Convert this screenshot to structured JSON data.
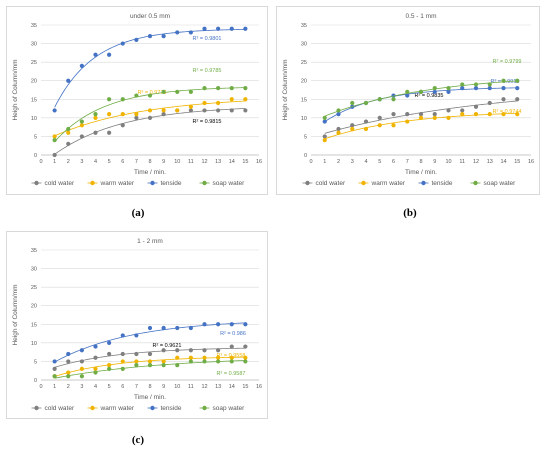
{
  "figure_labels": {
    "a": "(a)",
    "b": "(b)",
    "c": "(c)"
  },
  "legend_labels": [
    "cold water",
    "warm water",
    "tenside",
    "soap water"
  ],
  "series_colors": {
    "cold water": "#7f7f7f",
    "warm water": "#f0b400",
    "tenside": "#4472c4",
    "soap water": "#70ad47"
  },
  "chart_data": [
    {
      "type": "scatter",
      "title": "under 0.5 mm",
      "xlabel": "Time / min.",
      "ylabel": "Heigh of Column/mm",
      "xlim": [
        0,
        16
      ],
      "ylim": [
        0,
        35
      ],
      "xticks": [
        "0",
        "1",
        "2",
        "3",
        "4",
        "5",
        "6",
        "7",
        "8",
        "9",
        "10",
        "11",
        "12",
        "13",
        "14",
        "15",
        "16"
      ],
      "yticks": [
        "0",
        "5",
        "10",
        "15",
        "20",
        "25",
        "30",
        "35"
      ],
      "grid": true,
      "legend": "bottom",
      "series": [
        {
          "name": "cold water",
          "color": "#7f7f7f",
          "x": [
            1,
            2,
            3,
            4,
            5,
            6,
            7,
            8,
            9,
            10,
            11,
            12,
            13,
            14,
            15
          ],
          "y": [
            0,
            3,
            5,
            6,
            6,
            8,
            10,
            10,
            11,
            12,
            12,
            12,
            12,
            12,
            12
          ],
          "r2": "R² = 0.9815"
        },
        {
          "name": "warm water",
          "color": "#f0b400",
          "x": [
            1,
            2,
            3,
            4,
            5,
            6,
            7,
            8,
            9,
            10,
            11,
            12,
            13,
            14,
            15
          ],
          "y": [
            5,
            6,
            8,
            10,
            11,
            11,
            11,
            12,
            12,
            12,
            13,
            14,
            14,
            15,
            15
          ],
          "r2": "R² = 0.9776"
        },
        {
          "name": "tenside",
          "color": "#4472c4",
          "x": [
            1,
            2,
            3,
            4,
            5,
            6,
            7,
            8,
            9,
            10,
            11,
            12,
            13,
            14,
            15
          ],
          "y": [
            12,
            20,
            24,
            27,
            27,
            30,
            31,
            32,
            32,
            33,
            33,
            34,
            34,
            34,
            34
          ],
          "r2": "R² = 0.9801"
        },
        {
          "name": "soap water",
          "color": "#70ad47",
          "x": [
            1,
            2,
            3,
            4,
            5,
            6,
            7,
            8,
            9,
            10,
            11,
            12,
            13,
            14,
            15
          ],
          "y": [
            4,
            7,
            9,
            11,
            15,
            15,
            16,
            16,
            17,
            17,
            17,
            18,
            18,
            18,
            18
          ],
          "r2": "R² = 0.9785"
        }
      ]
    },
    {
      "type": "scatter",
      "title": "0.5 - 1 mm",
      "xlabel": "Time / min.",
      "ylabel": "Heigh of Column/mm",
      "xlim": [
        0,
        16
      ],
      "ylim": [
        0,
        35
      ],
      "xticks": [
        "0",
        "1",
        "2",
        "3",
        "4",
        "5",
        "6",
        "7",
        "8",
        "9",
        "10",
        "11",
        "12",
        "13",
        "14",
        "15",
        "16"
      ],
      "yticks": [
        "0",
        "5",
        "10",
        "15",
        "20",
        "25",
        "30",
        "35"
      ],
      "grid": true,
      "legend": "bottom",
      "series": [
        {
          "name": "cold water",
          "color": "#7f7f7f",
          "x": [
            1,
            2,
            3,
            4,
            5,
            6,
            7,
            8,
            9,
            10,
            11,
            12,
            13,
            14,
            15
          ],
          "y": [
            5,
            7,
            8,
            9,
            10,
            11,
            11,
            11,
            11,
            12,
            12,
            13,
            14,
            15,
            15
          ],
          "r2": "R² = 0.9835"
        },
        {
          "name": "warm water",
          "color": "#f0b400",
          "x": [
            1,
            2,
            3,
            4,
            5,
            6,
            7,
            8,
            9,
            10,
            11,
            12,
            13,
            14,
            15
          ],
          "y": [
            4,
            6,
            7,
            7,
            8,
            8,
            9,
            10,
            10,
            10,
            11,
            11,
            11,
            11,
            11
          ],
          "r2": "R² = 0.9744"
        },
        {
          "name": "tenside",
          "color": "#4472c4",
          "x": [
            1,
            2,
            3,
            4,
            5,
            6,
            7,
            8,
            9,
            10,
            11,
            12,
            13,
            14,
            15
          ],
          "y": [
            9,
            11,
            13,
            14,
            15,
            16,
            16,
            17,
            17,
            17,
            18,
            18,
            18,
            18,
            18
          ],
          "r2": "R² = 0.9916"
        },
        {
          "name": "soap water",
          "color": "#70ad47",
          "x": [
            1,
            2,
            3,
            4,
            5,
            6,
            7,
            8,
            9,
            10,
            11,
            12,
            13,
            14,
            15
          ],
          "y": [
            10,
            12,
            14,
            14,
            15,
            15,
            17,
            17,
            18,
            18,
            19,
            19,
            19,
            20,
            20
          ],
          "r2": "R² = 0.9799"
        }
      ]
    },
    {
      "type": "scatter",
      "title": "1 - 2 mm",
      "xlabel": "Time / min.",
      "ylabel": "Heigh of Column/mm",
      "xlim": [
        0,
        16
      ],
      "ylim": [
        0,
        35
      ],
      "xticks": [
        "0",
        "1",
        "2",
        "3",
        "4",
        "5",
        "6",
        "7",
        "8",
        "9",
        "10",
        "11",
        "12",
        "13",
        "14",
        "15",
        "16"
      ],
      "yticks": [
        "0",
        "5",
        "10",
        "15",
        "20",
        "25",
        "30",
        "35"
      ],
      "grid": true,
      "legend": "bottom",
      "series": [
        {
          "name": "cold water",
          "color": "#7f7f7f",
          "x": [
            1,
            2,
            3,
            4,
            5,
            6,
            7,
            8,
            9,
            10,
            11,
            12,
            13,
            14,
            15
          ],
          "y": [
            3,
            5,
            5,
            6,
            7,
            7,
            7,
            7,
            8,
            8,
            8,
            8,
            8,
            9,
            9
          ],
          "r2": "R² = 0.9621"
        },
        {
          "name": "warm water",
          "color": "#f0b400",
          "x": [
            1,
            2,
            3,
            4,
            5,
            6,
            7,
            8,
            9,
            10,
            11,
            12,
            13,
            14,
            15
          ],
          "y": [
            1,
            2,
            3,
            3,
            4,
            5,
            5,
            5,
            5,
            6,
            6,
            6,
            6,
            6,
            6
          ],
          "r2": "R² = 0.9558"
        },
        {
          "name": "tenside",
          "color": "#4472c4",
          "x": [
            1,
            2,
            3,
            4,
            5,
            6,
            7,
            8,
            9,
            10,
            11,
            12,
            13,
            14,
            15
          ],
          "y": [
            5,
            7,
            8,
            9,
            10,
            12,
            12,
            14,
            14,
            14,
            14,
            15,
            15,
            15,
            15
          ],
          "r2": "R² = 0.986"
        },
        {
          "name": "soap water",
          "color": "#70ad47",
          "x": [
            1,
            2,
            3,
            4,
            5,
            6,
            7,
            8,
            9,
            10,
            11,
            12,
            13,
            14,
            15
          ],
          "y": [
            1,
            1,
            1,
            2,
            3,
            3,
            4,
            4,
            4,
            4,
            5,
            5,
            5,
            5,
            5
          ],
          "r2": "R² = 0.9587"
        }
      ]
    }
  ]
}
